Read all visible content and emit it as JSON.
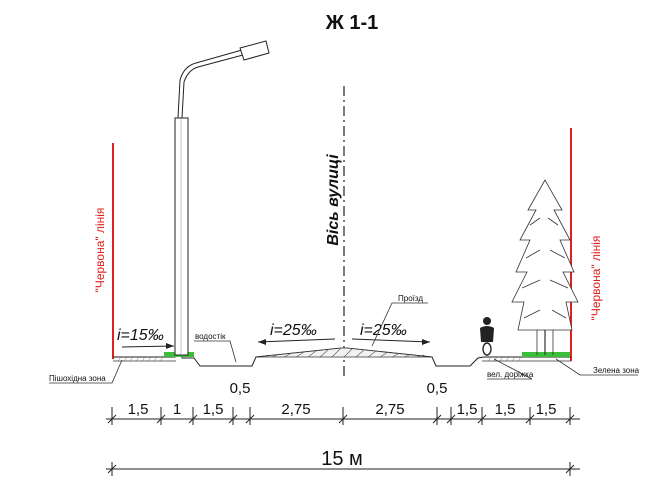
{
  "title": "Ж 1-1",
  "axis_label": "Вісь вулиці",
  "red_line_label": "\"Червона\" лінія",
  "slopes": {
    "sidewalk": "i=15‰",
    "road_left": "i=25‰",
    "road_right": "i=25‰"
  },
  "callouts": {
    "drain": "водостік",
    "driveway": "Проїзд",
    "pedestrian_zone": "Пішохідна зона",
    "bike_path": "вел. доріжка",
    "green_zone": "Зелена зона"
  },
  "dimensions": [
    "1,5",
    "1",
    "1,5",
    "0,5",
    "2,75",
    "2,75",
    "0,5",
    "1,5",
    "1,5",
    "1,5"
  ],
  "total_width": "15 м",
  "colors": {
    "red_line": "#e0201c",
    "grass": "#3bbf3b",
    "ink": "#222222"
  }
}
